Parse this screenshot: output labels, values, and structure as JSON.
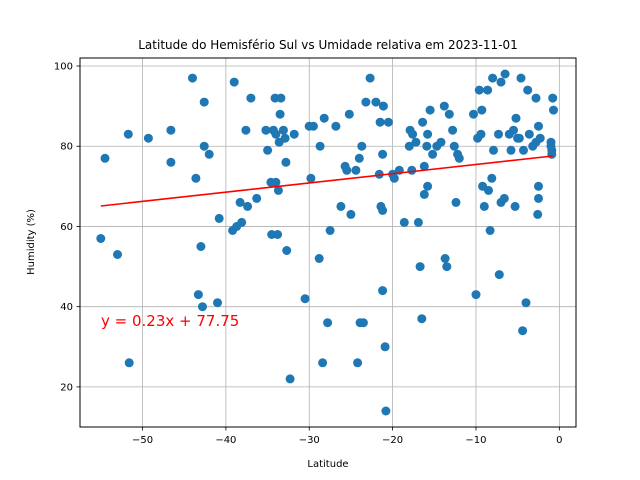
{
  "chart_data": {
    "type": "scatter",
    "title": "Latitude do Hemisfério Sul vs Umidade relativa em 2023-11-01",
    "xlabel": "Latitude",
    "ylabel": "Humidity (%)",
    "xlim": [
      -57.5,
      2
    ],
    "ylim": [
      10,
      102
    ],
    "xticks": [
      -50,
      -40,
      -30,
      -20,
      -10,
      0
    ],
    "yticks": [
      20,
      40,
      60,
      80,
      100
    ],
    "grid": true,
    "point_color": "#1f77b4",
    "line_color": "#ff0000",
    "annotation": "y = 0.23x + 77.75",
    "regression": {
      "slope": 0.23,
      "intercept": 77.75,
      "x_range": [
        -55.0,
        -0.8
      ]
    },
    "points": [
      [
        -55.0,
        57
      ],
      [
        -54.5,
        77
      ],
      [
        -53.0,
        53
      ],
      [
        -51.7,
        83
      ],
      [
        -51.6,
        26
      ],
      [
        -49.3,
        82
      ],
      [
        -46.6,
        84
      ],
      [
        -46.6,
        76
      ],
      [
        -44.0,
        97
      ],
      [
        -43.6,
        72
      ],
      [
        -43.3,
        43
      ],
      [
        -43.0,
        55
      ],
      [
        -42.8,
        40
      ],
      [
        -42.6,
        80
      ],
      [
        -42.6,
        91
      ],
      [
        -42.0,
        78
      ],
      [
        -41.0,
        41
      ],
      [
        -40.8,
        62
      ],
      [
        -39.2,
        59
      ],
      [
        -39.0,
        96
      ],
      [
        -38.7,
        60
      ],
      [
        -38.3,
        66
      ],
      [
        -38.1,
        61
      ],
      [
        -37.6,
        84
      ],
      [
        -37.4,
        65
      ],
      [
        -37.0,
        92
      ],
      [
        -36.3,
        67
      ],
      [
        -35.2,
        84
      ],
      [
        -35.0,
        79
      ],
      [
        -34.6,
        71
      ],
      [
        -34.5,
        58
      ],
      [
        -34.3,
        84
      ],
      [
        -34.1,
        92
      ],
      [
        -34.0,
        83
      ],
      [
        -34.0,
        71
      ],
      [
        -33.8,
        58
      ],
      [
        -33.7,
        69
      ],
      [
        -33.6,
        81
      ],
      [
        -33.5,
        88
      ],
      [
        -33.4,
        92
      ],
      [
        -33.1,
        84
      ],
      [
        -32.9,
        82
      ],
      [
        -32.8,
        76
      ],
      [
        -32.7,
        54
      ],
      [
        -32.3,
        22
      ],
      [
        -31.8,
        83
      ],
      [
        -30.5,
        42
      ],
      [
        -30.0,
        85
      ],
      [
        -29.8,
        72
      ],
      [
        -29.5,
        85
      ],
      [
        -28.8,
        52
      ],
      [
        -28.7,
        80
      ],
      [
        -28.4,
        26
      ],
      [
        -28.2,
        87
      ],
      [
        -27.8,
        36
      ],
      [
        -27.5,
        59
      ],
      [
        -26.8,
        85
      ],
      [
        -26.2,
        65
      ],
      [
        -25.7,
        75
      ],
      [
        -25.5,
        74
      ],
      [
        -25.2,
        88
      ],
      [
        -25.0,
        63
      ],
      [
        -24.4,
        74
      ],
      [
        -24.2,
        26
      ],
      [
        -24.0,
        77
      ],
      [
        -23.9,
        36
      ],
      [
        -23.7,
        80
      ],
      [
        -23.5,
        36
      ],
      [
        -23.2,
        91
      ],
      [
        -22.7,
        97
      ],
      [
        -22.0,
        91
      ],
      [
        -21.6,
        73
      ],
      [
        -21.5,
        86
      ],
      [
        -21.4,
        65
      ],
      [
        -21.2,
        44
      ],
      [
        -21.2,
        78
      ],
      [
        -21.2,
        64
      ],
      [
        -21.1,
        90
      ],
      [
        -20.9,
        30
      ],
      [
        -20.8,
        14
      ],
      [
        -20.5,
        86
      ],
      [
        -20.0,
        73
      ],
      [
        -19.8,
        72
      ],
      [
        -19.2,
        74
      ],
      [
        -18.6,
        61
      ],
      [
        -18.0,
        80
      ],
      [
        -17.9,
        84
      ],
      [
        -17.7,
        74
      ],
      [
        -17.6,
        83
      ],
      [
        -17.2,
        81
      ],
      [
        -16.9,
        61
      ],
      [
        -16.7,
        50
      ],
      [
        -16.5,
        37
      ],
      [
        -16.4,
        86
      ],
      [
        -16.2,
        75
      ],
      [
        -16.2,
        68
      ],
      [
        -15.9,
        80
      ],
      [
        -15.8,
        83
      ],
      [
        -15.8,
        70
      ],
      [
        -15.5,
        89
      ],
      [
        -15.2,
        78
      ],
      [
        -14.7,
        80
      ],
      [
        -14.2,
        81
      ],
      [
        -13.8,
        90
      ],
      [
        -13.7,
        52
      ],
      [
        -13.5,
        50
      ],
      [
        -13.2,
        88
      ],
      [
        -12.8,
        84
      ],
      [
        -12.6,
        80
      ],
      [
        -12.4,
        66
      ],
      [
        -12.2,
        78
      ],
      [
        -12.0,
        77
      ],
      [
        -10.3,
        88
      ],
      [
        -10.0,
        43
      ],
      [
        -9.8,
        82
      ],
      [
        -9.6,
        94
      ],
      [
        -9.4,
        83
      ],
      [
        -9.3,
        89
      ],
      [
        -9.2,
        70
      ],
      [
        -9.0,
        65
      ],
      [
        -8.6,
        94
      ],
      [
        -8.5,
        69
      ],
      [
        -8.3,
        59
      ],
      [
        -8.1,
        72
      ],
      [
        -8.0,
        97
      ],
      [
        -7.9,
        79
      ],
      [
        -7.3,
        83
      ],
      [
        -7.2,
        48
      ],
      [
        -7.0,
        96
      ],
      [
        -7.0,
        66
      ],
      [
        -6.6,
        67
      ],
      [
        -6.5,
        98
      ],
      [
        -6.0,
        83
      ],
      [
        -5.8,
        79
      ],
      [
        -5.5,
        84
      ],
      [
        -5.3,
        65
      ],
      [
        -5.2,
        87
      ],
      [
        -5.0,
        82
      ],
      [
        -4.8,
        82
      ],
      [
        -4.6,
        97
      ],
      [
        -4.4,
        34
      ],
      [
        -4.3,
        79
      ],
      [
        -4.0,
        41
      ],
      [
        -3.8,
        94
      ],
      [
        -3.6,
        83
      ],
      [
        -3.2,
        80
      ],
      [
        -2.8,
        81
      ],
      [
        -2.8,
        92
      ],
      [
        -2.6,
        63
      ],
      [
        -2.5,
        70
      ],
      [
        -2.5,
        67
      ],
      [
        -2.5,
        85
      ],
      [
        -2.3,
        82
      ],
      [
        -1.0,
        81
      ],
      [
        -1.0,
        80
      ],
      [
        -0.9,
        79
      ],
      [
        -0.8,
        92
      ],
      [
        -0.7,
        89
      ],
      [
        -0.9,
        78
      ]
    ]
  }
}
